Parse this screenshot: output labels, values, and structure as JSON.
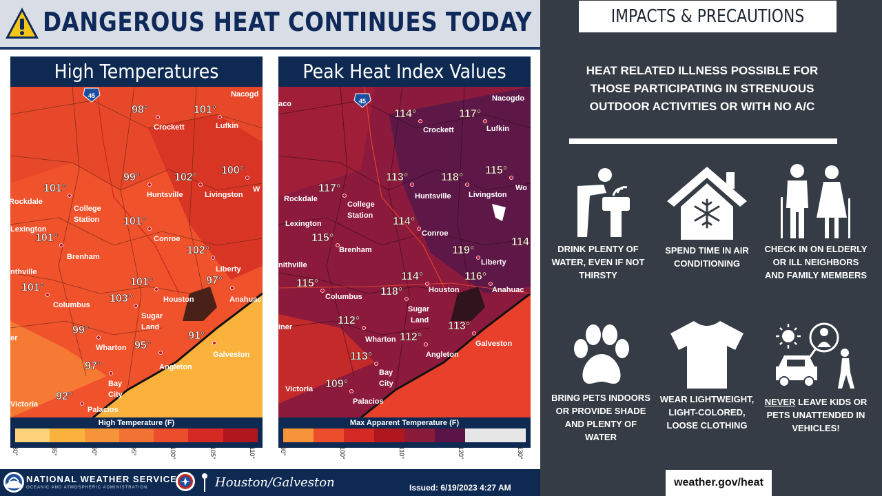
{
  "headline": "DANGEROUS HEAT CONTINUES TODAY",
  "maps": {
    "high": {
      "title": "High Temperatures",
      "legend_title": "High Temperature (F)",
      "legend_ticks": [
        "80°",
        "85°",
        "90°",
        "95°",
        "100°",
        "105°",
        "110°"
      ],
      "legend_colors": [
        "#fcd27a",
        "#fbb23c",
        "#f7943a",
        "#f27234",
        "#ec4e2c",
        "#d52a24",
        "#b0161e"
      ],
      "fill_colors": {
        "base": "#f0522c",
        "hot": "#d93524",
        "mild": "#f77a34",
        "coast": "#fbb23c"
      },
      "values": [
        {
          "id": "t-98",
          "label": "98°"
        },
        {
          "id": "t-101-lufkin",
          "label": "101°"
        },
        {
          "id": "t-99-hunts",
          "label": "99°"
        },
        {
          "id": "t-102-hunts",
          "label": "102°"
        },
        {
          "id": "t-100",
          "label": "100°"
        },
        {
          "id": "t-101-college",
          "label": "101°"
        },
        {
          "id": "t-101-conroe",
          "label": "101°"
        },
        {
          "id": "t-101-brenham",
          "label": "101°"
        },
        {
          "id": "t-102-liberty",
          "label": "102°"
        },
        {
          "id": "t-101-columbus",
          "label": "101°"
        },
        {
          "id": "t-101-houston",
          "label": "101°"
        },
        {
          "id": "t-97-ana",
          "label": "97°"
        },
        {
          "id": "t-103",
          "label": "103°"
        },
        {
          "id": "t-99-wharton",
          "label": "99°"
        },
        {
          "id": "t-95",
          "label": "95°"
        },
        {
          "id": "t-91",
          "label": "91°"
        },
        {
          "id": "t-97-bay",
          "label": "97°"
        },
        {
          "id": "t-92",
          "label": "92°"
        }
      ],
      "cities": [
        "Nacogd",
        "Crockett",
        "Lufkin",
        "Huntsville",
        "Livingston",
        "Rockdale",
        "College",
        "Station",
        "Lexington",
        "Conroe",
        "Brenham",
        "Liberty",
        "Houston",
        "Anahuac",
        "Columbus",
        "Sugar",
        "Land",
        "Wharton",
        "Angleton",
        "Galveston",
        "Bay",
        "City",
        "Victoria",
        "Palacios",
        "nthville",
        "er",
        "W"
      ],
      "shield": "45"
    },
    "heat": {
      "title": "Peak Heat Index Values",
      "legend_title": "Max Apparent Temperature (F)",
      "legend_ticks": [
        "90°",
        "100°",
        "110°",
        "120°",
        "130°"
      ],
      "legend_colors": [
        "#f7943a",
        "#ec4e2c",
        "#d52a24",
        "#b0161e",
        "#8a1a3a",
        "#5a1446",
        "#e6e6e6",
        "#e6e6e6"
      ],
      "fill_colors": {
        "base": "#8c1a3c",
        "hot": "#5e1848",
        "mild": "#c42a2a",
        "coast": "#e8402a"
      },
      "values": [
        {
          "id": "h-114-crock",
          "label": "114°"
        },
        {
          "id": "h-117-lufkin",
          "label": "117°"
        },
        {
          "id": "h-115-east",
          "label": "115°"
        },
        {
          "id": "h-113-hunts",
          "label": "113°"
        },
        {
          "id": "h-118",
          "label": "118°"
        },
        {
          "id": "h-117-rock",
          "label": "117°"
        },
        {
          "id": "h-114-conroe",
          "label": "114°"
        },
        {
          "id": "h-115-bren",
          "label": "115°"
        },
        {
          "id": "h-119",
          "label": "119°"
        },
        {
          "id": "h-114-east",
          "label": "114"
        },
        {
          "id": "h-114-hou",
          "label": "114°"
        },
        {
          "id": "h-116",
          "label": "116°"
        },
        {
          "id": "h-115-col",
          "label": "115°"
        },
        {
          "id": "h-118-sugar",
          "label": "118°"
        },
        {
          "id": "h-112-wh",
          "label": "112°"
        },
        {
          "id": "h-112-ang",
          "label": "112°"
        },
        {
          "id": "h-113-gal",
          "label": "113°"
        },
        {
          "id": "h-113-bay",
          "label": "113°"
        },
        {
          "id": "h-109",
          "label": "109°"
        }
      ],
      "cities": [
        "Nacogdo",
        "Crockett",
        "Lufkin",
        "Huntsville",
        "Livingston",
        "Wo",
        "Rockdale",
        "College",
        "Station",
        "Lexington",
        "Conroe",
        "Brenham",
        "Liberty",
        "nithville",
        "Houston",
        "Anahuac",
        "Columbus",
        "Sugar",
        "Land",
        "Wharton",
        "Angleton",
        "Galveston",
        "Bay",
        "City",
        "Victoria",
        "Palacios",
        "iner",
        "aco"
      ],
      "shield": "45"
    }
  },
  "footer": {
    "agency": "NATIONAL WEATHER SERVICE",
    "agency_sub": "OCEANIC AND ATMOSPHERIC ADMINISTRATION",
    "office": "Houston/Galveston",
    "issued": "Issued: 6/19/2023 4:27 AM"
  },
  "right": {
    "title": "IMPACTS & PRECAUTIONS",
    "intro": "HEAT RELATED ILLNESS POSSIBLE FOR THOSE PARTICIPATING IN STRENUOUS OUTDOOR ACTIVITIES OR WITH NO A/C",
    "tips": [
      {
        "icon": "drinking-fountain-icon",
        "label": "DRINK PLENTY OF WATER, EVEN IF NOT THIRSTY"
      },
      {
        "icon": "snow-house-icon",
        "label": "SPEND TIME IN AIR CONDITIONING"
      },
      {
        "icon": "elderly-couple-icon",
        "label": "CHECK IN ON ELDERLY OR ILL NEIGHBORS AND FAMILY MEMBERS"
      },
      {
        "icon": "paw-print-icon",
        "label": "BRING PETS INDOORS OR PROVIDE SHADE AND PLENTY OF WATER"
      },
      {
        "icon": "tshirt-icon",
        "label": "WEAR LIGHTWEIGHT, LIGHT-COLORED, LOOSE CLOTHING"
      },
      {
        "icon": "hot-car-child-icon",
        "label_emph": "NEVER",
        "label": " LEAVE KIDS OR PETS UNATTENDED IN VEHICLES!"
      }
    ],
    "url": "weather.gov/heat"
  }
}
